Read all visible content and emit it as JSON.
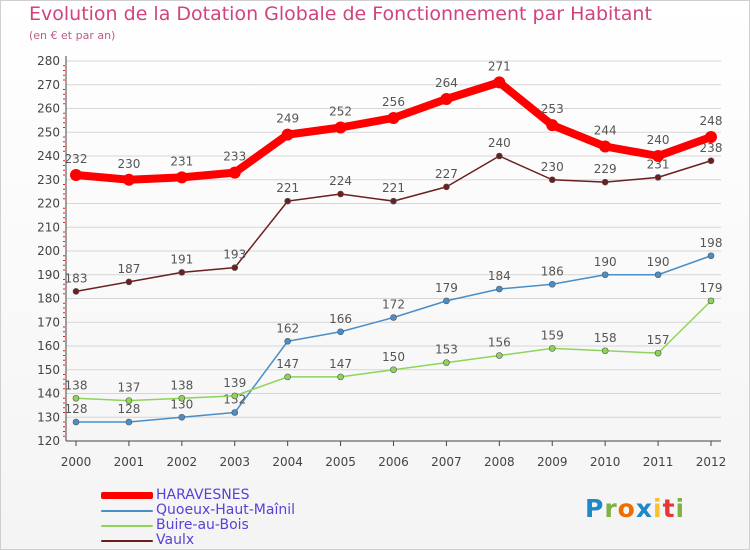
{
  "title": "Evolution de la Dotation Globale de Fonctionnement par Habitant",
  "subtitle": "(en € et par an)",
  "logo": {
    "text": "Proxiti",
    "colors": [
      "#1e88c8",
      "#7cb342",
      "#ef6c00",
      "#1e88c8",
      "#fbc02d",
      "#e53935",
      "#7cb342"
    ]
  },
  "colors": {
    "title": "#d1437e",
    "legend_text": "#5b3fd6",
    "axis": "#444444",
    "grid": "#d6d6d6",
    "tick_red": "#e02020"
  },
  "chart_data": {
    "type": "line",
    "x": [
      "2000",
      "2001",
      "2002",
      "2003",
      "2004",
      "2005",
      "2006",
      "2007",
      "2008",
      "2009",
      "2010",
      "2011",
      "2012"
    ],
    "ylim": [
      120,
      280
    ],
    "yticks": [
      "120",
      "130",
      "140",
      "150",
      "160",
      "170",
      "180",
      "190",
      "200",
      "210",
      "220",
      "230",
      "240",
      "250",
      "260",
      "270",
      "280"
    ],
    "grid": true,
    "legend_position": "bottom-left",
    "series": [
      {
        "name": "HARAVESNES",
        "color": "#ff0000",
        "values": [
          232,
          230,
          231,
          233,
          249,
          252,
          256,
          264,
          271,
          253,
          244,
          240,
          248
        ]
      },
      {
        "name": "Quoeux-Haut-Maînil",
        "color": "#4a8ec8",
        "values": [
          128,
          128,
          130,
          132,
          162,
          166,
          172,
          179,
          184,
          186,
          190,
          190,
          198
        ]
      },
      {
        "name": "Buire-au-Bois",
        "color": "#8fd45a",
        "values": [
          138,
          137,
          138,
          139,
          147,
          147,
          150,
          153,
          156,
          159,
          158,
          157,
          179
        ]
      },
      {
        "name": "Vaulx",
        "color": "#6b1f1f",
        "values": [
          183,
          187,
          191,
          193,
          221,
          224,
          221,
          227,
          240,
          230,
          229,
          231,
          238
        ]
      }
    ]
  }
}
